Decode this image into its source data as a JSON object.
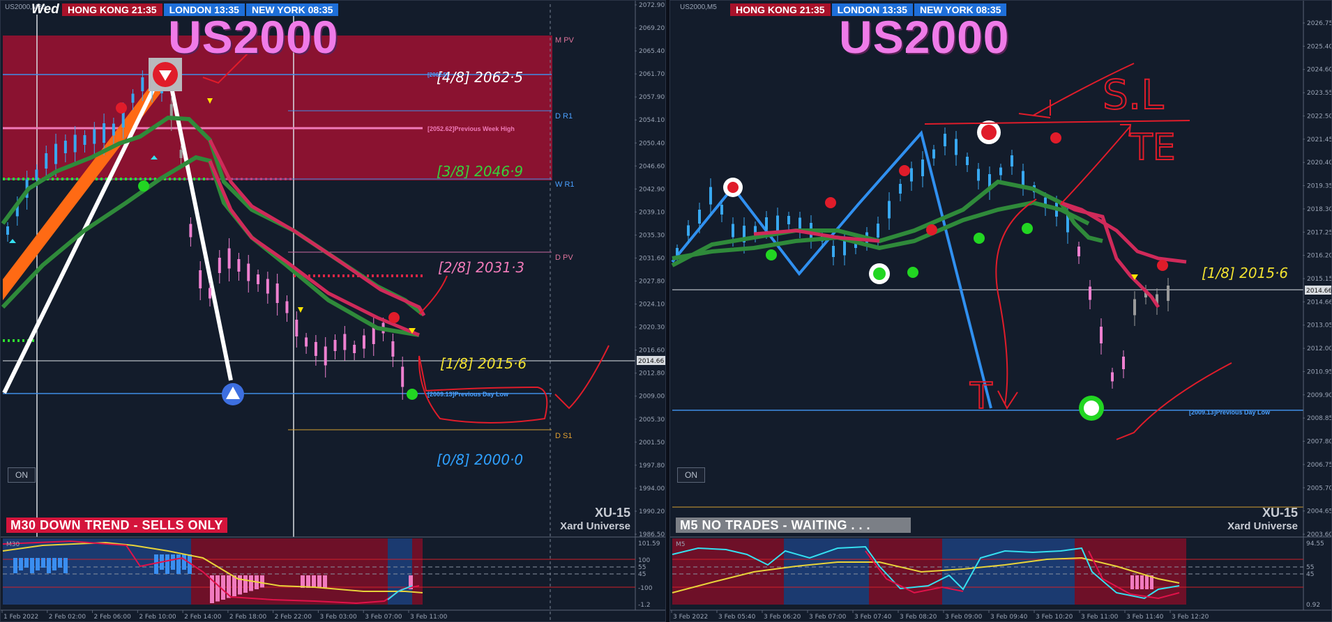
{
  "left": {
    "symbol": "US2000,M30",
    "title_prefix": "Wed",
    "symbol_title": "US2000",
    "clocks": {
      "hong_kong": "HONG KONG 21:35",
      "london": "LONDON 13:35",
      "new_york": "NEW YORK 08:35"
    },
    "price_axis": [
      "2072.90",
      "2069.20",
      "2065.40",
      "2061.70",
      "2057.90",
      "2054.10",
      "2050.40",
      "2046.60",
      "2042.90",
      "2039.10",
      "2035.30",
      "2031.60",
      "2027.80",
      "2024.10",
      "2020.30",
      "2016.60",
      "2012.80",
      "2009.00",
      "2005.30",
      "2001.50",
      "1997.80",
      "1994.00",
      "1990.20",
      "1986.50"
    ],
    "current_price": "2014.66",
    "levels": {
      "m_pv": "M PV",
      "d_r1": "D R1",
      "w_r1": "W R1",
      "d_pv": "D PV",
      "d_s1": "D S1"
    },
    "murrey": {
      "m48": "[4/8] 2062·5",
      "m38": "[3/8] 2046·9",
      "m28": "[2/8] 2031·3",
      "m18": "[1/8] 2015·6",
      "m08": "[0/8] 2000·0"
    },
    "notes": {
      "prev_week_high": "[2052.62]Previous Week High",
      "prev_day_low": "[2009.13]Previous Day Low",
      "hidden_label": "[2062.5]"
    },
    "on_button": "ON",
    "brand": {
      "model": "XU-15",
      "name": "Xard Universe"
    },
    "trend_banner": "M30  DOWN TREND - SELLS ONLY",
    "sub": {
      "label": "M30",
      "scale": [
        "101.59",
        "100",
        "55",
        "45",
        "-100",
        "-1.2",
        "-100"
      ]
    },
    "time_axis": [
      "1 Feb 2022",
      "2 Feb 02:00",
      "2 Feb 06:00",
      "2 Feb 10:00",
      "2 Feb 14:00",
      "2 Feb 18:00",
      "2 Feb 22:00",
      "3 Feb 03:00",
      "3 Feb 07:00",
      "3 Feb 11:00"
    ],
    "colors": {
      "zone": "#8a1230",
      "banner": "#d4143b"
    }
  },
  "right": {
    "symbol": "US2000,M5",
    "symbol_title": "US2000",
    "clocks": {
      "hong_kong": "HONG KONG 21:35",
      "london": "LONDON 13:35",
      "new_york": "NEW YORK 08:35"
    },
    "price_axis": [
      "2026.75",
      "2025.40",
      "2024.60",
      "2023.55",
      "2022.50",
      "2021.45",
      "2020.40",
      "2019.35",
      "2018.30",
      "2017.25",
      "2016.20",
      "2015.15",
      "2014.66",
      "2013.05",
      "2012.00",
      "2010.95",
      "2009.90",
      "2008.85",
      "2007.80",
      "2006.75",
      "2005.70",
      "2004.65",
      "2003.60"
    ],
    "current_price": "2014.66",
    "murrey": {
      "m18": "[1/8] 2015·6"
    },
    "notes": {
      "prev_day_low": "[2009.13]Previous Day Low"
    },
    "handwriting": {
      "sl": "S.L",
      "te": "TE",
      "tp": "T"
    },
    "on_button": "ON",
    "brand": {
      "model": "XU-15",
      "name": "Xard Universe"
    },
    "trend_banner": "M5  NO TRADES - WAITING . . .",
    "sub": {
      "label": "M5",
      "scale": [
        "94.55",
        "55",
        "45",
        "0.92"
      ]
    },
    "time_axis": [
      "3 Feb 2022",
      "3 Feb 05:40",
      "3 Feb 06:20",
      "3 Feb 07:00",
      "3 Feb 07:40",
      "3 Feb 08:20",
      "3 Feb 09:00",
      "3 Feb 09:40",
      "3 Feb 10:20",
      "3 Feb 11:00",
      "3 Feb 11:40",
      "3 Feb 12:20"
    ],
    "colors": {
      "banner": "#7b7f86"
    }
  }
}
